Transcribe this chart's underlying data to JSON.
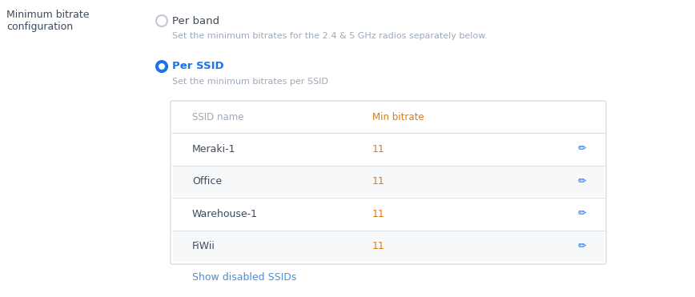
{
  "bg_color": "#ffffff",
  "label_color": "#3d4a5c",
  "gray_text_color": "#9eaab8",
  "blue_color": "#1a73e8",
  "orange_color": "#e07b10",
  "link_color": "#4a90d9",
  "table_border_color": "#d8dde3",
  "row_alt_color": "#f7f8f9",
  "left_label": "Minimum bitrate\nconfiguration",
  "option1_label": "Per band",
  "option1_desc": "Set the minimum bitrates for the 2.4 & 5 GHz radios separately below.",
  "option2_label": "Per SSID",
  "option2_desc": "Set the minimum bitrates per SSID",
  "col1_header": "SSID name",
  "col2_header": "Min bitrate",
  "rows": [
    {
      "name": "Meraki-1",
      "bitrate": "11",
      "alt": false
    },
    {
      "name": "Office",
      "bitrate": "11",
      "alt": true
    },
    {
      "name": "Warehouse-1",
      "bitrate": "11",
      "alt": false
    },
    {
      "name": "FiWii",
      "bitrate": "11",
      "alt": true
    }
  ],
  "show_link": "Show disabled SSIDs",
  "fig_width": 8.68,
  "fig_height": 3.71,
  "dpi": 100
}
